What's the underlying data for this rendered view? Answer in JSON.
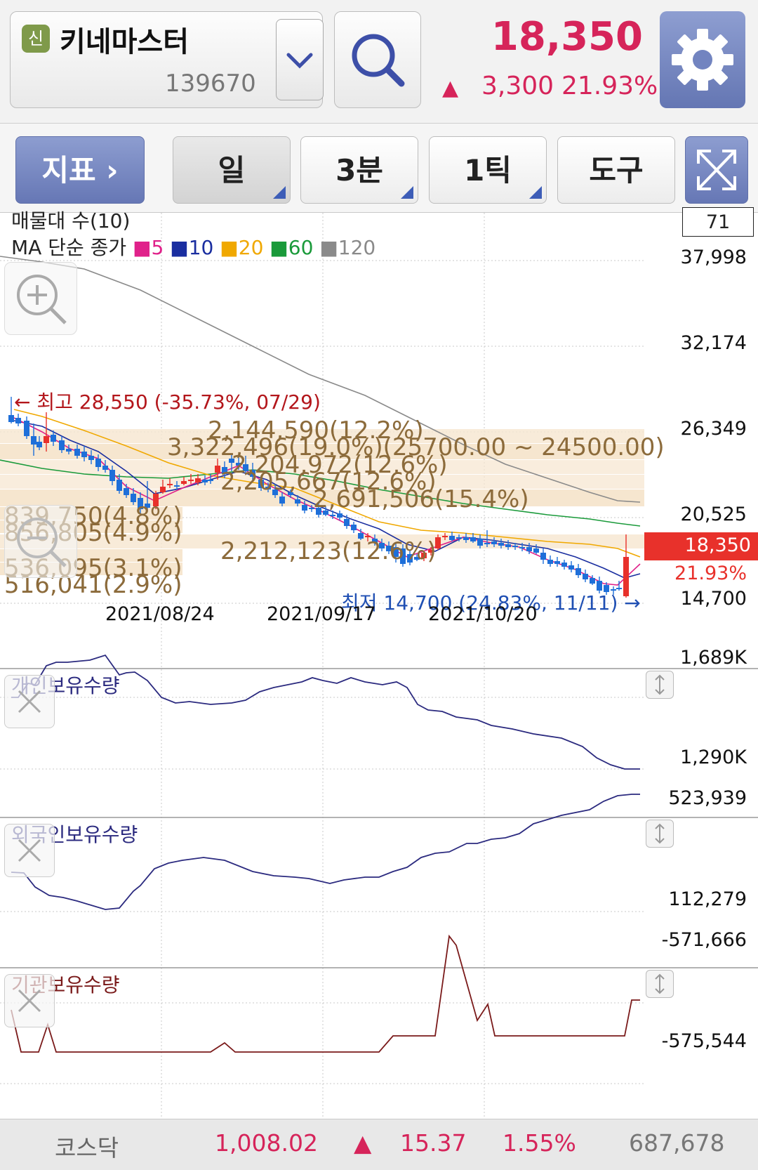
{
  "header": {
    "badge": "신",
    "stock_name": "키네마스터",
    "stock_code": "139670",
    "price": "18,350",
    "change_arrow": "▲",
    "change_abs": "3,300",
    "change_pct": "21.93%"
  },
  "toolbar": {
    "indicator_label": "지표 ›",
    "period_label": "일",
    "minute_label": "3분",
    "tick_label": "1틱",
    "tool_label": "도구"
  },
  "main_chart": {
    "title1": "매물대 수(10)",
    "ma_prefix": "MA 단순 종가",
    "ma_legend": [
      {
        "label": "5",
        "color": "#e0218a"
      },
      {
        "label": "10",
        "color": "#1a2ea0"
      },
      {
        "label": "20",
        "color": "#f0a800"
      },
      {
        "label": "60",
        "color": "#1a9a3a"
      },
      {
        "label": "120",
        "color": "#8a8a8a"
      }
    ],
    "count_box": "71",
    "y_labels": [
      "37,998",
      "32,174",
      "26,349",
      "20,525",
      "14,700"
    ],
    "current_price": "18,350",
    "current_pct": "21.93%",
    "high_annotation": "← 최고 28,550 (-35.73%, 07/29)",
    "low_annotation": "최저 14,700 (24.83%, 11/11) →",
    "volume_profile": [
      "2,144,590(12.2%)",
      "3,322,496(19.0%)(25700.00 ~ 24500.00)",
      "2,204,972(12.6%)",
      "2,205,667(12.6%)",
      "2,691,506(15.4%)",
      "839,750(4.8%)",
      "856,805(4.9%)",
      "2,212,123(12.6%)",
      "536,095(3.1%)",
      "516,041(2.9%)"
    ],
    "dates": [
      "2021/08/24",
      "2021/09/17",
      "2021/10/20"
    ]
  },
  "panes": {
    "individual": {
      "title": "개인보유수량",
      "top": "1,689K",
      "bottom": "1,290K"
    },
    "foreign": {
      "title": "외국인보유수량",
      "top": "523,939",
      "bottom": "112,279"
    },
    "institution": {
      "title": "기관보유수량",
      "top": "-571,666",
      "bottom": "-575,544"
    }
  },
  "footer": {
    "index_name": "코스닥",
    "index_value": "1,008.02",
    "arrow": "▲",
    "change": "15.37",
    "pct": "1.55%",
    "volume": "687,678"
  },
  "colors": {
    "up": "#e8312b",
    "down": "#1e6fd9",
    "accent": "#d6245a"
  }
}
